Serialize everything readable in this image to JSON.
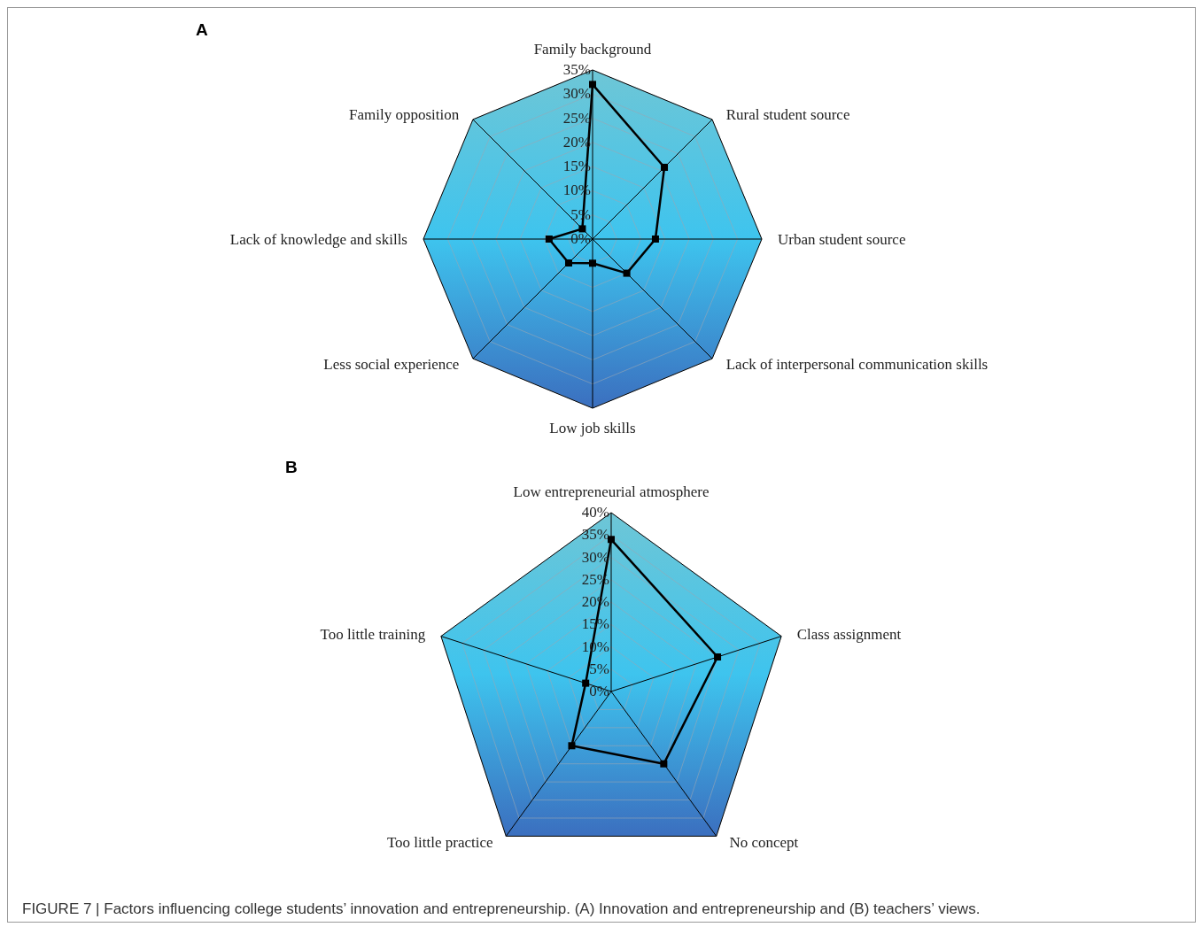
{
  "chart_data": [
    {
      "type": "radar",
      "title": "A",
      "categories": [
        "Family background",
        "Rural student source",
        "Urban student source",
        "Lack of interpersonal communication skills",
        "Low job skills",
        "Less social experience",
        "Lack of knowledge and skills",
        "Family opposition"
      ],
      "series": [
        {
          "color": "#000000",
          "values": [
            32,
            21,
            13,
            10,
            5,
            7,
            9,
            3
          ]
        }
      ],
      "ylim": [
        0,
        35
      ],
      "yticks": [
        {
          "value": 0,
          "label": "0%"
        },
        {
          "value": 5,
          "label": "5%"
        },
        {
          "value": 10,
          "label": "10%"
        },
        {
          "value": 15,
          "label": "15%"
        },
        {
          "value": 20,
          "label": "20%"
        },
        {
          "value": 25,
          "label": "25%"
        },
        {
          "value": 30,
          "label": "30%"
        },
        {
          "value": 35,
          "label": "35%"
        }
      ],
      "grid": true,
      "marker": "square",
      "line_style": "solid"
    },
    {
      "type": "radar",
      "title": "B",
      "categories": [
        "Low entrepreneurial atmosphere",
        "Class assignment",
        "No concept",
        "Too little practice",
        "Too little training"
      ],
      "series": [
        {
          "color": "#000000",
          "values": [
            34,
            25,
            20,
            15,
            6
          ]
        }
      ],
      "ylim": [
        0,
        40
      ],
      "yticks": [
        {
          "value": 0,
          "label": "0%"
        },
        {
          "value": 5,
          "label": "5%"
        },
        {
          "value": 10,
          "label": "10%"
        },
        {
          "value": 15,
          "label": "15%"
        },
        {
          "value": 20,
          "label": "20%"
        },
        {
          "value": 25,
          "label": "25%"
        },
        {
          "value": 30,
          "label": "30%"
        },
        {
          "value": 35,
          "label": "35%"
        },
        {
          "value": 40,
          "label": "40%"
        }
      ],
      "grid": true,
      "marker": "square",
      "line_style": "solid",
      "annotations": [
        "FIGURE 7 | Factors influencing college students’ innovation and entrepreneurship. (A) Innovation and entrepreneurship and (B) teachers’ views."
      ]
    }
  ]
}
